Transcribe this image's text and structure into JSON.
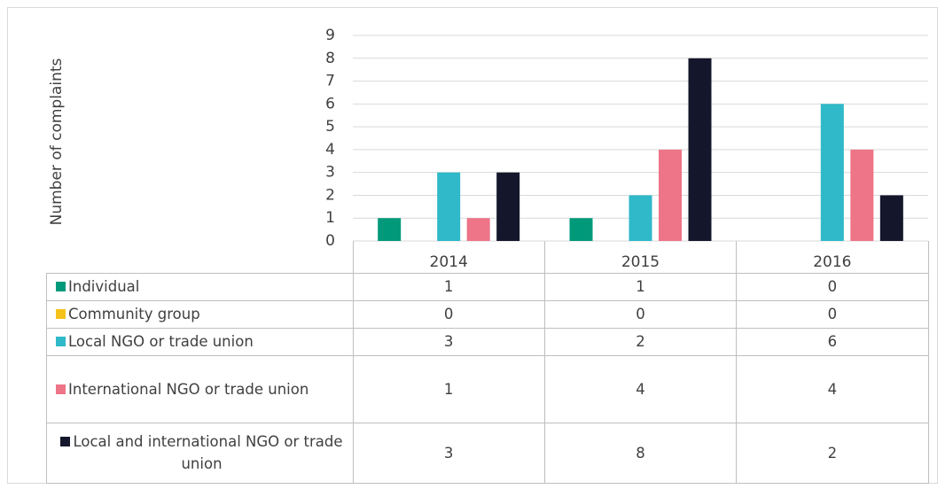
{
  "chart_data": {
    "type": "bar",
    "ylabel": "Number of complaints",
    "categories": [
      "2014",
      "2015",
      "2016"
    ],
    "series": [
      {
        "name": "Individual",
        "color": "#009a7b",
        "values": [
          1,
          1,
          0
        ]
      },
      {
        "name": "Community group",
        "color": "#f5c21b",
        "values": [
          0,
          0,
          0
        ]
      },
      {
        "name": "Local NGO or trade union",
        "color": "#2fb9c9",
        "values": [
          3,
          2,
          6
        ]
      },
      {
        "name": "International NGO or trade union",
        "color": "#ee7488",
        "values": [
          1,
          4,
          4
        ]
      },
      {
        "name": "Local and international NGO or trade union",
        "color": "#14172b",
        "values": [
          3,
          8,
          2
        ]
      }
    ],
    "ylim": [
      0,
      9
    ],
    "yticks": [
      0,
      1,
      2,
      3,
      4,
      5,
      6,
      7,
      8,
      9
    ],
    "grid": true
  }
}
